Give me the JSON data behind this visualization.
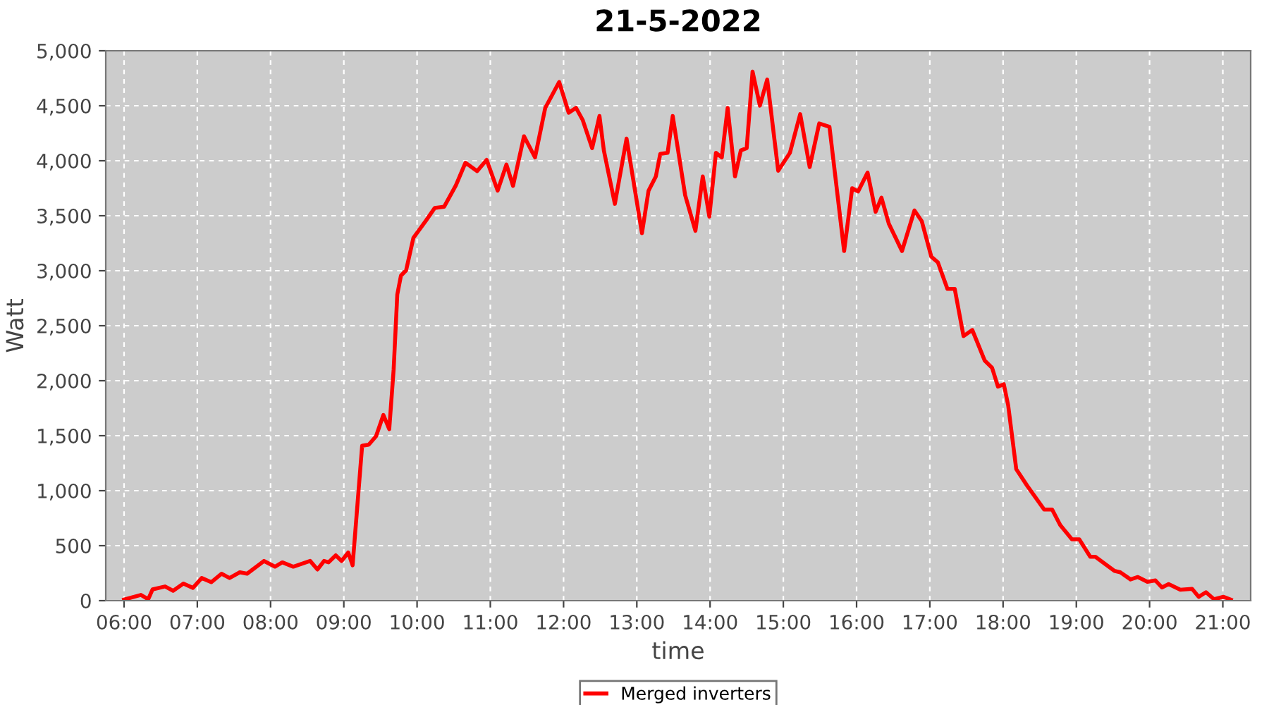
{
  "chart_data": {
    "type": "line",
    "title": "21-5-2022",
    "xlabel": "time",
    "ylabel": "Watt",
    "xlim": [
      5.75,
      21.38
    ],
    "ylim": [
      0,
      5000
    ],
    "xticks": [
      {
        "value": 6,
        "label": "06:00"
      },
      {
        "value": 7,
        "label": "07:00"
      },
      {
        "value": 8,
        "label": "08:00"
      },
      {
        "value": 9,
        "label": "09:00"
      },
      {
        "value": 10,
        "label": "10:00"
      },
      {
        "value": 11,
        "label": "11:00"
      },
      {
        "value": 12,
        "label": "12:00"
      },
      {
        "value": 13,
        "label": "13:00"
      },
      {
        "value": 14,
        "label": "14:00"
      },
      {
        "value": 15,
        "label": "15:00"
      },
      {
        "value": 16,
        "label": "16:00"
      },
      {
        "value": 17,
        "label": "17:00"
      },
      {
        "value": 18,
        "label": "18:00"
      },
      {
        "value": 19,
        "label": "19:00"
      },
      {
        "value": 20,
        "label": "20:00"
      },
      {
        "value": 21,
        "label": "21:00"
      }
    ],
    "yticks": [
      0,
      500,
      {
        "value": 1000,
        "label": "1,000"
      },
      {
        "value": 1500,
        "label": "1,500"
      },
      {
        "value": 2000,
        "label": "2,000"
      },
      {
        "value": 2500,
        "label": "2,500"
      },
      {
        "value": 3000,
        "label": "3,000"
      },
      {
        "value": 3500,
        "label": "3,500"
      },
      {
        "value": 4000,
        "label": "4,000"
      },
      {
        "value": 4500,
        "label": "4,500"
      },
      {
        "value": 5000,
        "label": "5,000"
      }
    ],
    "grid": true,
    "legend": "bottom",
    "marker": "none",
    "line_style": "solid",
    "series": [
      {
        "name": "Merged inverters",
        "color": "#ff0000",
        "x": [
          6.0,
          6.23,
          6.33,
          6.39,
          6.56,
          6.67,
          6.81,
          6.94,
          7.06,
          7.19,
          7.33,
          7.44,
          7.58,
          7.68,
          7.91,
          8.06,
          8.16,
          8.31,
          8.54,
          8.64,
          8.73,
          8.79,
          8.89,
          8.97,
          9.06,
          9.12,
          9.25,
          9.34,
          9.44,
          9.54,
          9.62,
          9.68,
          9.73,
          9.78,
          9.85,
          9.95,
          10.12,
          10.24,
          10.37,
          10.53,
          10.66,
          10.82,
          10.95,
          11.1,
          11.22,
          11.31,
          11.46,
          11.61,
          11.75,
          11.94,
          12.07,
          12.17,
          12.26,
          12.39,
          12.49,
          12.55,
          12.7,
          12.86,
          13.07,
          13.16,
          13.26,
          13.32,
          13.42,
          13.49,
          13.66,
          13.8,
          13.9,
          13.99,
          14.08,
          14.16,
          14.24,
          14.34,
          14.42,
          14.5,
          14.58,
          14.68,
          14.78,
          14.93,
          15.09,
          15.23,
          15.36,
          15.49,
          15.63,
          15.83,
          15.94,
          16.02,
          16.15,
          16.26,
          16.34,
          16.44,
          16.62,
          16.79,
          16.89,
          17.02,
          17.11,
          17.24,
          17.34,
          17.46,
          17.58,
          17.75,
          17.85,
          17.93,
          18.01,
          18.07,
          18.18,
          18.33,
          18.56,
          18.67,
          18.78,
          18.94,
          19.04,
          19.19,
          19.26,
          19.52,
          19.6,
          19.74,
          19.84,
          19.97,
          20.08,
          20.17,
          20.26,
          20.42,
          20.58,
          20.67,
          20.77,
          20.88,
          21.01,
          21.11
        ],
        "values": [
          10,
          52,
          13,
          103,
          129,
          90,
          155,
          116,
          206,
          168,
          245,
          206,
          258,
          245,
          361,
          309,
          348,
          309,
          361,
          284,
          361,
          348,
          412,
          361,
          438,
          322,
          1408,
          1418,
          1495,
          1688,
          1559,
          2100,
          2784,
          2955,
          3003,
          3299,
          3454,
          3570,
          3582,
          3776,
          3982,
          3905,
          4008,
          3728,
          3965,
          3772,
          4223,
          4030,
          4481,
          4716,
          4437,
          4481,
          4372,
          4115,
          4407,
          4094,
          3608,
          4201,
          3341,
          3728,
          3857,
          4063,
          4072,
          4407,
          3686,
          3363,
          3857,
          3492,
          4072,
          4030,
          4481,
          3857,
          4094,
          4115,
          4811,
          4501,
          4738,
          3909,
          4072,
          4424,
          3943,
          4339,
          4308,
          3179,
          3750,
          3720,
          3892,
          3535,
          3664,
          3428,
          3179,
          3548,
          3450,
          3128,
          3076,
          2835,
          2835,
          2406,
          2461,
          2182,
          2117,
          1946,
          1968,
          1774,
          1195,
          1044,
          829,
          829,
          687,
          558,
          558,
          399,
          399,
          271,
          258,
          193,
          215,
          171,
          184,
          120,
          151,
          99,
          107,
          35,
          77,
          13,
          35,
          9
        ]
      }
    ]
  }
}
